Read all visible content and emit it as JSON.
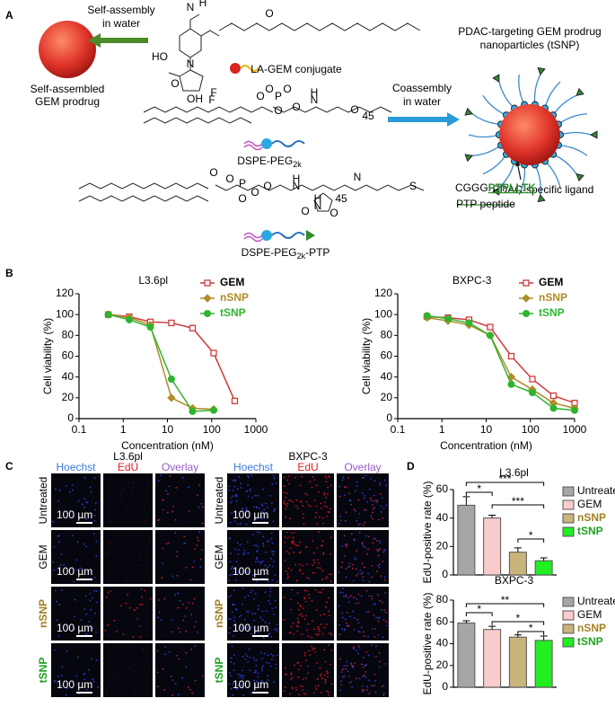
{
  "panel_labels": [
    "A",
    "B",
    "C",
    "D"
  ],
  "panel_a": {
    "self_assembly": [
      "Self-assembly",
      "in water"
    ],
    "prodrug": [
      "Self-assembled",
      "GEM prodrug"
    ],
    "conjugate": "LA-GEM conjugate",
    "dspe_peg": {
      "text": "DSPE-PEG",
      "sub": "2k"
    },
    "dspe_peg_ptp": {
      "text": "DSPE-PEG",
      "sub": "2k",
      "suffix": "-PTP"
    },
    "coassembly": [
      "Coassembly",
      "in water"
    ],
    "tsnp": [
      "PDAC-targeting GEM prodrug",
      "nanoparticles (tSNP)"
    ],
    "ligand": "PDAC-specific ligand",
    "peptide_prefix": "CGGG",
    "peptide_seq": "PTPLLTK",
    "peptide": "PTP peptide",
    "chem_labels": [
      "N",
      "O",
      "N",
      "H",
      "O",
      "HO",
      "OH",
      "F",
      "F",
      "O",
      "O",
      "P",
      "O",
      "O",
      "O",
      "N",
      "H",
      "O",
      "45",
      "O",
      "O",
      "P",
      "O",
      "O",
      "O",
      "N",
      "H",
      "45",
      "N",
      "H",
      "N",
      "O",
      "O",
      "S"
    ]
  },
  "chart_data": [
    {
      "type": "line",
      "title": "L3.6pl",
      "x_label": "Concentration (nM)",
      "y_label": "Cell viability (%)",
      "log_x": true,
      "x": [
        0.46,
        1.37,
        4.1,
        12.3,
        37,
        111,
        333
      ],
      "xlim": [
        0.1,
        1000
      ],
      "xticks": [
        0.1,
        1,
        10,
        100,
        1000
      ],
      "ylim": [
        0,
        120
      ],
      "yticks": [
        0,
        20,
        40,
        60,
        80,
        100,
        120
      ],
      "series": [
        {
          "name": "GEM",
          "color": "#d03a3a",
          "marker": "square",
          "values": [
            100,
            98,
            93,
            92,
            87,
            63,
            17
          ]
        },
        {
          "name": "nSNP",
          "color": "#b08d2a",
          "marker": "diamond",
          "values": [
            100,
            97,
            90,
            20,
            10,
            9,
            null
          ]
        },
        {
          "name": "tSNP",
          "color": "#2fb42f",
          "marker": "circle",
          "values": [
            100,
            95,
            88,
            38,
            7,
            8,
            null
          ]
        }
      ]
    },
    {
      "type": "line",
      "title": "BXPC-3",
      "x_label": "Concentration (nM)",
      "y_label": "Cell viability (%)",
      "log_x": true,
      "x": [
        0.46,
        1.37,
        4.1,
        12.3,
        37,
        111,
        333,
        1000
      ],
      "xlim": [
        0.1,
        1000
      ],
      "xticks": [
        0.1,
        1,
        10,
        100,
        1000
      ],
      "ylim": [
        0,
        120
      ],
      "yticks": [
        0,
        20,
        40,
        60,
        80,
        100,
        120
      ],
      "series": [
        {
          "name": "GEM",
          "color": "#d03a3a",
          "marker": "square",
          "values": [
            98,
            97,
            95,
            88,
            60,
            38,
            22,
            15
          ]
        },
        {
          "name": "nSNP",
          "color": "#b08d2a",
          "marker": "diamond",
          "values": [
            97,
            94,
            90,
            80,
            40,
            28,
            15,
            10
          ]
        },
        {
          "name": "tSNP",
          "color": "#2fb42f",
          "marker": "circle",
          "values": [
            99,
            96,
            92,
            80,
            33,
            25,
            10,
            8
          ]
        }
      ]
    },
    {
      "type": "bar",
      "title": "L3.6pl",
      "y_label": "EdU-positive rate (%)",
      "categories": [
        "Untreated",
        "GEM",
        "nSNP",
        "tSNP"
      ],
      "values": [
        49,
        40,
        16,
        10
      ],
      "errors": [
        6,
        2,
        3,
        2
      ],
      "colors": [
        "#a6a6a6",
        "#f9cccc",
        "#c9b47b",
        "#22ee22"
      ],
      "label_colors": [
        "#000000",
        "#000000",
        "#a08020",
        "#22a022"
      ],
      "ylim": [
        0,
        60
      ],
      "yticks": [
        0,
        20,
        40,
        60
      ],
      "annotations": [
        "***",
        "*",
        "***",
        "*"
      ]
    },
    {
      "type": "bar",
      "title": "BXPC-3",
      "y_label": "EdU-positive rate (%)",
      "categories": [
        "Untreated",
        "GEM",
        "nSNP",
        "tSNP"
      ],
      "values": [
        59,
        53,
        46,
        43
      ],
      "errors": [
        2,
        3,
        2,
        4
      ],
      "colors": [
        "#a6a6a6",
        "#f9cccc",
        "#c9b47b",
        "#22ee22"
      ],
      "label_colors": [
        "#000000",
        "#000000",
        "#a08020",
        "#22a022"
      ],
      "ylim": [
        0,
        80
      ],
      "yticks": [
        0,
        20,
        40,
        60,
        80
      ],
      "annotations": [
        "**",
        "*",
        "*",
        "*"
      ]
    }
  ],
  "panel_c": {
    "groups": [
      {
        "title": "L3.6pl",
        "columns": [
          "Hoechst",
          "EdU",
          "Overlay"
        ],
        "rows": [
          "Untreated",
          "GEM",
          "nSNP",
          "tSNP"
        ],
        "scale_bar": "100 µm"
      },
      {
        "title": "BXPC-3",
        "columns": [
          "Hoechst",
          "EdU",
          "Overlay"
        ],
        "rows": [
          "Untreated",
          "GEM",
          "nSNP",
          "tSNP"
        ],
        "scale_bar": "100 µm"
      }
    ]
  }
}
